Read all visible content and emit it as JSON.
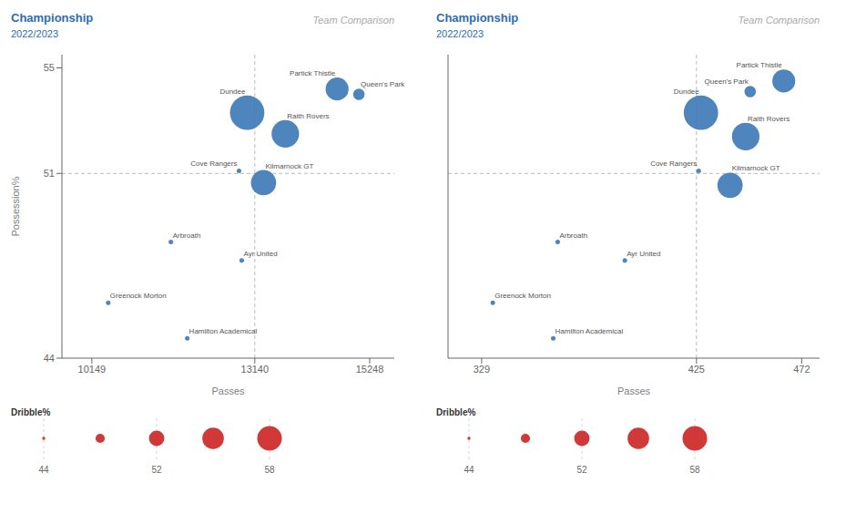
{
  "chart_data": [
    {
      "type": "scatter",
      "title": "Championship",
      "subtitle": "2022/2023",
      "annotations": [
        "Team Comparison"
      ],
      "x_label": "Passes",
      "y_label": "Possession%",
      "xlim": [
        9600,
        15700
      ],
      "ylim": [
        44,
        55.5
      ],
      "xticks": [
        10149,
        13140,
        15248
      ],
      "yticks": [
        44,
        51,
        55
      ],
      "reference_lines": {
        "x": 13140,
        "y": 51
      },
      "color": "#3a78b5",
      "points": [
        {
          "name": "Partick Thistle",
          "x": 14650,
          "y": 54.2,
          "size": 52
        },
        {
          "name": "Queen's Park",
          "x": 15050,
          "y": 54.0,
          "size": 47
        },
        {
          "name": "Dundee",
          "x": 13000,
          "y": 53.3,
          "size": 57
        },
        {
          "name": "Raith Rovers",
          "x": 13700,
          "y": 52.5,
          "size": 54
        },
        {
          "name": "Cove Rangers",
          "x": 12850,
          "y": 51.1,
          "size": 44
        },
        {
          "name": "Kilmarnock GT",
          "x": 13300,
          "y": 50.65,
          "size": 53
        },
        {
          "name": "Arbroath",
          "x": 11600,
          "y": 48.4,
          "size": 44
        },
        {
          "name": "Ayr United",
          "x": 12900,
          "y": 47.7,
          "size": 44
        },
        {
          "name": "Greenock Morton",
          "x": 10450,
          "y": 46.1,
          "size": 44
        },
        {
          "name": "Hamilton Academical",
          "x": 11900,
          "y": 44.75,
          "size": 44
        }
      ],
      "size_legend": {
        "title": "Dribble%",
        "values": [
          44,
          48,
          52,
          56,
          58
        ],
        "ticks": [
          44,
          52,
          58
        ],
        "color": "#cc2222"
      }
    },
    {
      "type": "scatter",
      "title": "Championship",
      "subtitle": "2022/2023",
      "annotations": [
        "Team Comparison"
      ],
      "x_label": "Passes",
      "tick_labels": "x",
      "xlim": [
        314,
        480
      ],
      "ylim": [
        44,
        55.5
      ],
      "xticks": [
        329,
        425,
        472
      ],
      "yticks": [
        44,
        51,
        55
      ],
      "reference_lines": {
        "x": 425,
        "y": 51
      },
      "color": "#3a78b5",
      "points": [
        {
          "name": "Partick Thistle",
          "x": 464,
          "y": 54.5,
          "size": 52
        },
        {
          "name": "Queen's Park",
          "x": 449,
          "y": 54.1,
          "size": 47
        },
        {
          "name": "Dundee",
          "x": 427,
          "y": 53.3,
          "size": 57
        },
        {
          "name": "Raith Rovers",
          "x": 447,
          "y": 52.4,
          "size": 54
        },
        {
          "name": "Cove Rangers",
          "x": 426,
          "y": 51.1,
          "size": 44
        },
        {
          "name": "Kilmarnock GT",
          "x": 440,
          "y": 50.55,
          "size": 53
        },
        {
          "name": "Arbroath",
          "x": 363,
          "y": 48.4,
          "size": 44
        },
        {
          "name": "Ayr United",
          "x": 393,
          "y": 47.7,
          "size": 44
        },
        {
          "name": "Greenock Morton",
          "x": 334,
          "y": 46.1,
          "size": 44
        },
        {
          "name": "Hamilton Academical",
          "x": 361,
          "y": 44.75,
          "size": 44
        }
      ],
      "size_legend": {
        "title": "Dribble%",
        "values": [
          44,
          48,
          52,
          56,
          58
        ],
        "ticks": [
          44,
          52,
          58
        ],
        "color": "#cc2222"
      }
    }
  ]
}
